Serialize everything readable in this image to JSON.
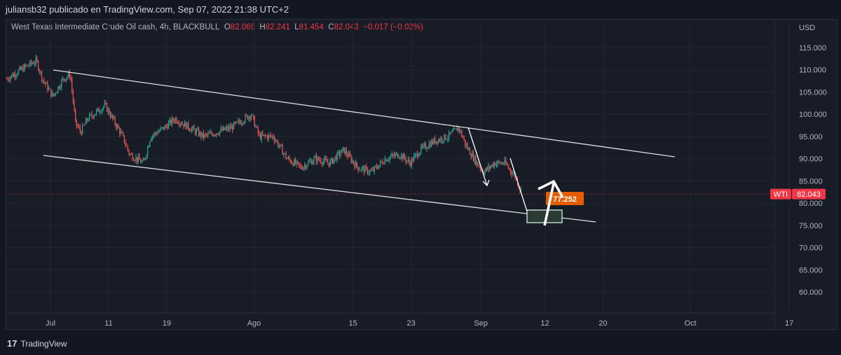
{
  "header": {
    "published": "juliansb32 publicado en TradingView.com, Sep 07, 2022 21:38 UTC+2"
  },
  "legend": {
    "symbol": "West Texas Intermediate Crude Oil cash, 4h, BLACKBULL",
    "o_label": "O",
    "o": "82.065",
    "h_label": "H",
    "h": "82.241",
    "l_label": "L",
    "l": "81.454",
    "c_label": "C",
    "c": "82.043",
    "change": "−0.017 (−0.02%)"
  },
  "currency": "USD",
  "price_tag": {
    "symbol": "WTI",
    "value": "82.043",
    "color": "#f23645"
  },
  "annotation": {
    "value": "77.252",
    "color": "#e65c00"
  },
  "footer": {
    "brand": "TradingView"
  },
  "colors": {
    "up": "#26a69a",
    "down": "#ef5350"
  },
  "chart_data": {
    "type": "candlestick",
    "y_ticks": [
      "115.000",
      "110.000",
      "105.000",
      "100.000",
      "95.000",
      "90.000",
      "85.000",
      "80.000",
      "75.000",
      "70.000",
      "65.000",
      "60.000"
    ],
    "ylim": [
      60,
      115
    ],
    "x_ticks": [
      {
        "label": "Jul",
        "day": 0
      },
      {
        "label": "11",
        "day": 10
      },
      {
        "label": "19",
        "day": 20
      },
      {
        "label": "Ago",
        "day": 35
      },
      {
        "label": "15",
        "day": 52
      },
      {
        "label": "23",
        "day": 62
      },
      {
        "label": "Sep",
        "day": 74
      },
      {
        "label": "12",
        "day": 85
      },
      {
        "label": "20",
        "day": 95
      },
      {
        "label": "Oct",
        "day": 110
      },
      {
        "label": "17",
        "day": 127
      }
    ],
    "price_path": [
      [
        -7.5,
        108
      ],
      [
        -3.9,
        111
      ],
      [
        -2.4,
        112
      ],
      [
        -1.4,
        108
      ],
      [
        0.4,
        104
      ],
      [
        2.2,
        108
      ],
      [
        3.4,
        109
      ],
      [
        4.3,
        98
      ],
      [
        5.2,
        96
      ],
      [
        6.4,
        99
      ],
      [
        9.4,
        102
      ],
      [
        12.4,
        95
      ],
      [
        13.6,
        91
      ],
      [
        16,
        89
      ],
      [
        17.2,
        95
      ],
      [
        19.6,
        97
      ],
      [
        21.4,
        99
      ],
      [
        23.9,
        97
      ],
      [
        26.3,
        95
      ],
      [
        28.7,
        96
      ],
      [
        31.1,
        97
      ],
      [
        34.5,
        100
      ],
      [
        35.9,
        95
      ],
      [
        38.3,
        95
      ],
      [
        40.7,
        90
      ],
      [
        43.1,
        88
      ],
      [
        45.5,
        90
      ],
      [
        48,
        89
      ],
      [
        50.4,
        92
      ],
      [
        52.8,
        88
      ],
      [
        55.2,
        87
      ],
      [
        57.6,
        90
      ],
      [
        60,
        91
      ],
      [
        61.8,
        89
      ],
      [
        63.6,
        92
      ],
      [
        66,
        94
      ],
      [
        68.4,
        95
      ],
      [
        70.2,
        97
      ],
      [
        71.4,
        93
      ],
      [
        73.3,
        89
      ],
      [
        74.5,
        87
      ],
      [
        76.3,
        89
      ],
      [
        78.1,
        89
      ],
      [
        79.9,
        86
      ],
      [
        81.1,
        82
      ]
    ],
    "last_price": 82.043
  }
}
